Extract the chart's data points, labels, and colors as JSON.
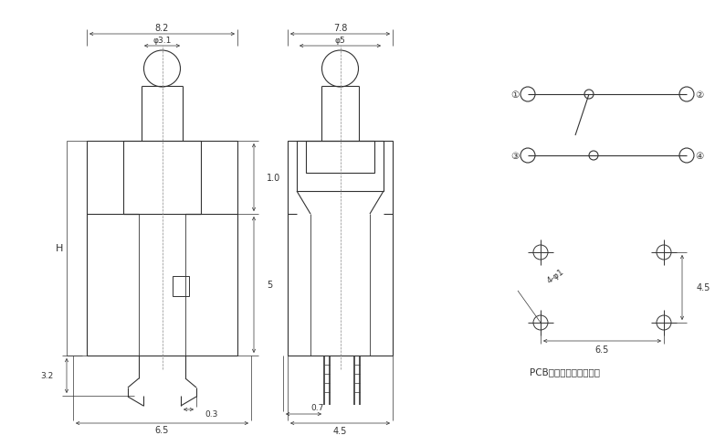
{
  "bg_color": "#ffffff",
  "line_color": "#333333",
  "fig_width": 7.83,
  "fig_height": 4.89,
  "dpi": 100,
  "labels": {
    "dim_82": "8.2",
    "dim_phi31": "φ3.1",
    "dim_H": "H",
    "dim_10": "1.0",
    "dim_5": "5",
    "dim_32": "3.2",
    "dim_03": "0.3",
    "dim_65_front": "6.5",
    "dim_78": "7.8",
    "dim_phi5": "φ5",
    "dim_07": "0.7",
    "dim_45_side": "4.5",
    "dim_65_pcb": "6.5",
    "dim_45_pcb": "4.5",
    "dim_4phi1": "4-φ1",
    "pcb_text": "PCB焊接尺寸及安装尺寸"
  }
}
